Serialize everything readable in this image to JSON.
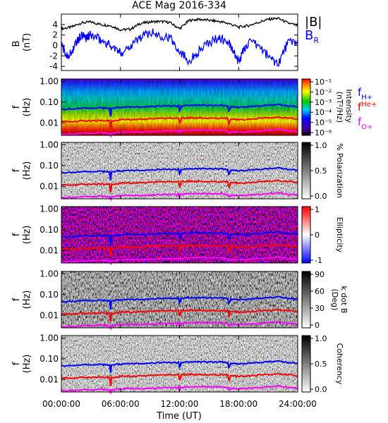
{
  "title": "ACE Mag 2016-334",
  "time_axis": {
    "label": "Time (UT)",
    "ticks": [
      "00:00:00",
      "06:00:00",
      "12:00:00",
      "18:00:00",
      "24:00:00"
    ],
    "range_hours": [
      0,
      24
    ]
  },
  "colors": {
    "B_total": "#000000",
    "B_R": "#0000ff",
    "f_Hplus": "#0000ff",
    "f_Heplus": "#ff0000",
    "f_Oplus": "#ff00ff"
  },
  "chart_data": [
    {
      "type": "line",
      "ylabel": "B (nT)",
      "ylim": [
        -4.8,
        6
      ],
      "yticks": [
        4,
        2,
        0,
        -2,
        -4
      ],
      "legend": [
        "|B|",
        "B_R"
      ],
      "series": [
        {
          "name": "|B|",
          "x": [
            0,
            1,
            2,
            3,
            4,
            5,
            6,
            7,
            8,
            9,
            10,
            11,
            12,
            13,
            14,
            15,
            16,
            17,
            18,
            19,
            20,
            21,
            22,
            23,
            24
          ],
          "values": [
            3.2,
            3.5,
            4.3,
            4.5,
            4.0,
            3.8,
            3.0,
            3.1,
            4.2,
            4.5,
            4.6,
            4.4,
            3.2,
            4.8,
            5.0,
            4.8,
            4.6,
            4.2,
            3.5,
            3.8,
            4.4,
            5.0,
            5.2,
            4.3,
            3.8
          ]
        },
        {
          "name": "B_R",
          "x": [
            0,
            0.5,
            1,
            1.5,
            2,
            2.5,
            3,
            4,
            5,
            6,
            7,
            8,
            9,
            10,
            11,
            12,
            13,
            14,
            15,
            16,
            17,
            17.5,
            18,
            18.5,
            19,
            20,
            21,
            22,
            23,
            24
          ],
          "values": [
            0.2,
            -2.0,
            -1.5,
            0.5,
            1.8,
            1.5,
            2.0,
            1.0,
            0.0,
            -1.5,
            0.0,
            1.5,
            2.5,
            2.0,
            1.5,
            -1.0,
            -3.0,
            -1.0,
            0.5,
            1.5,
            0.5,
            -1.5,
            -3.0,
            -1.0,
            0.5,
            0.0,
            -2.0,
            -3.5,
            0.5,
            1.0
          ]
        }
      ]
    },
    {
      "type": "heatmap",
      "ylabel": "f (Hz)",
      "yticks": [
        "1.00",
        "0.10",
        "0.01"
      ],
      "colorbar": {
        "label": "Intensity (nT²/Hz)",
        "ticks": [
          "10⁻¹",
          "10⁻²",
          "10⁻³",
          "10⁻⁴",
          "10⁻⁵",
          "10⁻⁶"
        ]
      },
      "legend": [
        "f_H+",
        "f_He+",
        "f_O+"
      ]
    },
    {
      "type": "heatmap",
      "ylabel": "f (Hz)",
      "yticks": [
        "1.00",
        "0.10",
        "0.01"
      ],
      "colorbar": {
        "label": "% Polarization",
        "ticks": [
          "1.0",
          "0.5",
          "0.0"
        ]
      }
    },
    {
      "type": "heatmap",
      "ylabel": "f (Hz)",
      "yticks": [
        "1.00",
        "0.10",
        "0.01"
      ],
      "colorbar": {
        "label": "Ellipticity",
        "ticks": [
          "1",
          "0",
          "-1"
        ]
      }
    },
    {
      "type": "heatmap",
      "ylabel": "f (Hz)",
      "yticks": [
        "1.00",
        "0.10",
        "0.01"
      ],
      "colorbar": {
        "label": "k dot B (Deg)",
        "ticks": [
          "90",
          "60",
          "30",
          "0"
        ]
      }
    },
    {
      "type": "heatmap",
      "ylabel": "f (Hz)",
      "yticks": [
        "1.00",
        "0.10",
        "0.01"
      ],
      "colorbar": {
        "label": "Coherency",
        "ticks": [
          "1.0",
          "0.5",
          "0.0"
        ]
      }
    }
  ],
  "gyro_lines": {
    "x": [
      0,
      2,
      4,
      4.9,
      5.0,
      5.1,
      6,
      8,
      10,
      11.9,
      12.0,
      12.2,
      13,
      14,
      16,
      16.9,
      17.0,
      17.2,
      18,
      20,
      22,
      24
    ],
    "f_Hplus": [
      0.045,
      0.05,
      0.052,
      0.05,
      0.02,
      0.05,
      0.055,
      0.06,
      0.065,
      0.066,
      0.04,
      0.067,
      0.07,
      0.07,
      0.068,
      0.066,
      0.035,
      0.06,
      0.055,
      0.065,
      0.075,
      0.06
    ],
    "f_Heplus": [
      0.011,
      0.0125,
      0.013,
      0.0125,
      0.005,
      0.0125,
      0.014,
      0.015,
      0.016,
      0.0165,
      0.01,
      0.0168,
      0.0175,
      0.0175,
      0.017,
      0.0165,
      0.009,
      0.015,
      0.014,
      0.016,
      0.019,
      0.015
    ],
    "f_Oplus": [
      0.0028,
      0.0031,
      0.0033,
      0.0031,
      0.0024,
      0.0031,
      0.0035,
      0.0037,
      0.004,
      0.0041,
      0.0032,
      0.0042,
      0.0044,
      0.0044,
      0.0043,
      0.0041,
      0.0031,
      0.0037,
      0.0035,
      0.004,
      0.0047,
      0.0038
    ]
  }
}
